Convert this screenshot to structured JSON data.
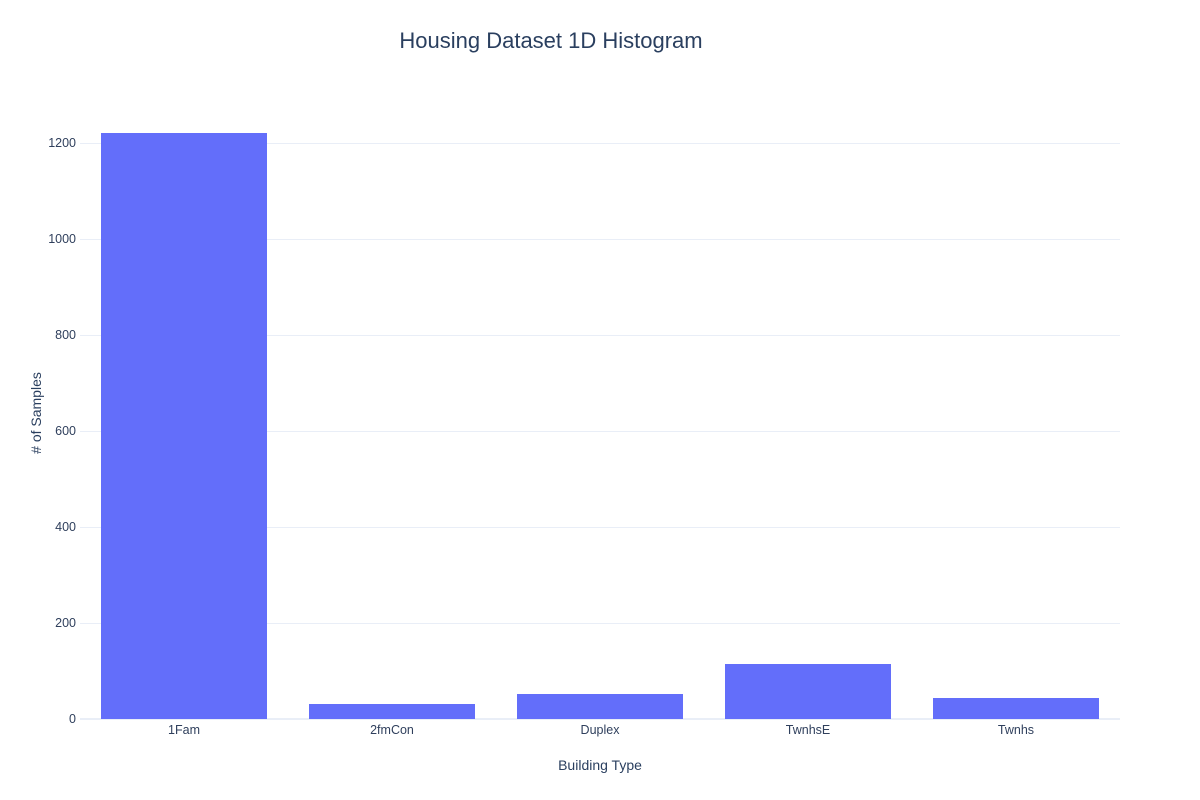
{
  "chart_data": {
    "type": "bar",
    "title": "Housing Dataset 1D Histogram",
    "xlabel": "Building Type",
    "ylabel": "# of Samples",
    "categories": [
      "1Fam",
      "2fmCon",
      "Duplex",
      "TwnhsE",
      "Twnhs"
    ],
    "values": [
      1220,
      31,
      52,
      114,
      43
    ],
    "ylim": [
      0,
      1273
    ],
    "yticks": [
      0,
      200,
      400,
      600,
      800,
      1000,
      1200
    ],
    "grid": true,
    "legend": false,
    "colors": {
      "bar": "#636efa",
      "grid": "#e9eef7",
      "text": "#2a3f5f",
      "tick": "#2f3f5c",
      "background": "#ffffff"
    }
  }
}
